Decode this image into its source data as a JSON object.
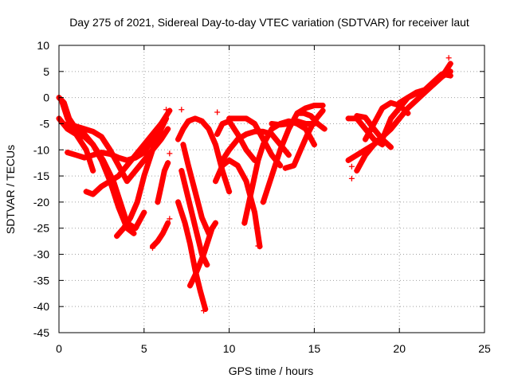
{
  "chart_data": {
    "type": "scatter",
    "title": "Day 275 of 2021, Sidereal Day-to-day VTEC variation (SDTVAR) for receiver laut",
    "xlabel": "GPS time / hours",
    "ylabel": "SDTVAR / TECUs",
    "xlim": [
      0,
      25
    ],
    "ylim": [
      -45,
      10
    ],
    "x_ticks": [
      0,
      5,
      10,
      15,
      20,
      25
    ],
    "y_ticks": [
      10,
      5,
      0,
      -5,
      -10,
      -15,
      -20,
      -25,
      -30,
      -35,
      -40,
      -45
    ],
    "grid": true,
    "marker": "+",
    "color": "#ff0000",
    "series": [
      {
        "name": "arc-1",
        "x": [
          0.0,
          0.3,
          0.6,
          1.0,
          1.5,
          2.0,
          2.6,
          3.2,
          3.6,
          4.0,
          4.5,
          5.0
        ],
        "y": [
          0.0,
          -1.0,
          -4.0,
          -6.0,
          -7.0,
          -9.0,
          -12.0,
          -16.0,
          -20.0,
          -24.0,
          -25.0,
          -22.0
        ]
      },
      {
        "name": "arc-2",
        "x": [
          0.0,
          0.5,
          1.0,
          1.5,
          2.0,
          2.5,
          3.0,
          3.5,
          4.0,
          4.4
        ],
        "y": [
          -4.0,
          -6.0,
          -7.0,
          -7.5,
          -9.0,
          -12.0,
          -16.0,
          -21.0,
          -25.0,
          -26.0
        ]
      },
      {
        "name": "arc-3",
        "x": [
          0.2,
          0.5,
          1.0,
          1.6,
          2.0
        ],
        "y": [
          -1.0,
          -4.0,
          -7.0,
          -10.0,
          -14.0
        ]
      },
      {
        "name": "arc-4",
        "x": [
          0.5,
          1.0,
          1.5,
          2.0,
          2.5,
          3.0,
          3.5,
          4.0,
          4.5,
          5.0,
          5.5,
          6.0,
          6.4
        ],
        "y": [
          -5.0,
          -5.5,
          -6.0,
          -6.5,
          -7.5,
          -10.0,
          -13.0,
          -16.0,
          -14.0,
          -12.0,
          -10.0,
          -8.0,
          -6.0
        ]
      },
      {
        "name": "arc-5",
        "x": [
          0.5,
          1.0,
          1.5,
          2.0,
          2.5,
          3.0,
          3.5,
          4.0,
          4.5,
          5.0,
          5.5,
          6.0,
          6.5
        ],
        "y": [
          -10.5,
          -11.0,
          -11.5,
          -11.0,
          -10.5,
          -10.8,
          -11.5,
          -12.0,
          -11.5,
          -10.5,
          -8.0,
          -5.0,
          -2.5
        ]
      },
      {
        "name": "arc-6",
        "x": [
          1.6,
          2.0,
          2.5,
          3.0,
          3.5,
          4.0,
          4.5,
          5.0,
          5.5,
          6.0
        ],
        "y": [
          -18.0,
          -18.5,
          -17.0,
          -16.0,
          -15.0,
          -13.0,
          -11.0,
          -9.0,
          -7.0,
          -5.0
        ]
      },
      {
        "name": "arc-7",
        "x": [
          3.4,
          3.8,
          4.2,
          4.6,
          5.0,
          5.5,
          6.0,
          6.3
        ],
        "y": [
          -26.5,
          -25.0,
          -23.0,
          -20.0,
          -15.0,
          -10.0,
          -6.0,
          -4.0
        ]
      },
      {
        "name": "arc-8",
        "x": [
          5.5,
          5.8,
          6.1,
          6.4
        ],
        "y": [
          -28.5,
          -27.5,
          -26.0,
          -24.0
        ]
      },
      {
        "name": "arc-9",
        "x": [
          5.8,
          6.0,
          6.2,
          6.4
        ],
        "y": [
          -20.0,
          -17.0,
          -14.0,
          -12.5
        ]
      },
      {
        "name": "arc-10",
        "x": [
          7.0,
          7.4,
          7.7,
          8.0,
          8.3,
          8.6
        ],
        "y": [
          -20.0,
          -24.0,
          -28.0,
          -33.0,
          -37.0,
          -40.5
        ]
      },
      {
        "name": "arc-11",
        "x": [
          7.0,
          7.3,
          7.6,
          8.0,
          8.4,
          8.8,
          9.2,
          9.6,
          10.0
        ],
        "y": [
          -8.0,
          -6.0,
          -4.5,
          -4.0,
          -4.5,
          -6.0,
          -9.0,
          -14.0,
          -18.0
        ]
      },
      {
        "name": "arc-12",
        "x": [
          7.2,
          7.5,
          7.8,
          8.1,
          8.4,
          8.7
        ],
        "y": [
          -14.0,
          -18.0,
          -22.0,
          -26.0,
          -30.0,
          -32.0
        ]
      },
      {
        "name": "arc-13",
        "x": [
          7.3,
          7.6,
          8.0,
          8.4,
          8.8,
          9.0,
          9.2
        ],
        "y": [
          -9.0,
          -13.0,
          -18.0,
          -23.0,
          -26.0,
          -25.0,
          -24.0
        ]
      },
      {
        "name": "arc-14",
        "x": [
          7.7,
          8.0,
          8.5,
          9.0
        ],
        "y": [
          -36.0,
          -34.0,
          -30.0,
          -25.0
        ]
      },
      {
        "name": "arc-15",
        "x": [
          9.2,
          9.6,
          10.0,
          10.5,
          11.0,
          11.5,
          11.8
        ],
        "y": [
          -16.0,
          -13.0,
          -12.0,
          -13.0,
          -16.0,
          -22.0,
          -28.5
        ]
      },
      {
        "name": "arc-16",
        "x": [
          9.3,
          9.6,
          10.0,
          10.5,
          11.0,
          11.5
        ],
        "y": [
          -7.0,
          -5.0,
          -4.5,
          -7.0,
          -10.0,
          -12.0
        ]
      },
      {
        "name": "arc-17",
        "x": [
          9.6,
          10.0,
          10.5,
          11.0,
          11.5,
          12.0,
          12.5,
          13.0,
          13.5
        ],
        "y": [
          -12.0,
          -10.0,
          -8.0,
          -7.0,
          -6.5,
          -6.5,
          -7.0,
          -9.0,
          -11.0
        ]
      },
      {
        "name": "arc-18",
        "x": [
          10.0,
          10.5,
          11.0,
          11.5,
          12.0,
          12.5,
          13.0
        ],
        "y": [
          -4.0,
          -4.0,
          -4.0,
          -5.0,
          -8.0,
          -11.0,
          -13.0
        ]
      },
      {
        "name": "arc-19",
        "x": [
          10.9,
          11.3,
          11.7,
          12.0,
          12.5,
          13.0,
          13.5,
          14.0,
          14.5,
          15.0
        ],
        "y": [
          -24.0,
          -18.0,
          -12.0,
          -9.0,
          -6.0,
          -5.0,
          -4.5,
          -5.0,
          -6.0,
          -9.0
        ]
      },
      {
        "name": "arc-20",
        "x": [
          12.0,
          12.5,
          13.0,
          13.5,
          14.0,
          14.5,
          15.0,
          15.5
        ],
        "y": [
          -20.0,
          -15.0,
          -10.0,
          -6.0,
          -3.0,
          -2.0,
          -1.5,
          -1.5
        ]
      },
      {
        "name": "arc-21",
        "x": [
          12.5,
          13.0,
          13.5,
          14.0,
          14.5,
          15.0
        ],
        "y": [
          -5.0,
          -5.2,
          -5.0,
          -4.5,
          -5.0,
          -5.0
        ]
      },
      {
        "name": "arc-22",
        "x": [
          13.3,
          13.8,
          14.2,
          14.6,
          15.0,
          15.5
        ],
        "y": [
          -13.5,
          -13.0,
          -10.0,
          -7.0,
          -4.5,
          -2.5
        ]
      },
      {
        "name": "arc-23",
        "x": [
          14.0,
          14.4,
          14.8,
          15.2,
          15.6
        ],
        "y": [
          -3.0,
          -3.0,
          -3.5,
          -5.0,
          -6.0
        ]
      },
      {
        "name": "arc-24",
        "x": [
          17.0,
          17.5,
          18.0,
          18.5,
          19.0,
          19.5,
          20.0
        ],
        "y": [
          -12.0,
          -11.0,
          -10.0,
          -9.0,
          -7.5,
          -6.0,
          -4.0
        ]
      },
      {
        "name": "arc-25",
        "x": [
          17.0,
          17.5,
          18.0,
          18.5,
          19.0
        ],
        "y": [
          -4.0,
          -4.0,
          -6.0,
          -8.0,
          -9.0
        ]
      },
      {
        "name": "arc-26",
        "x": [
          17.5,
          18.0,
          18.5,
          19.0,
          19.5
        ],
        "y": [
          -3.5,
          -3.8,
          -6.0,
          -8.0,
          -9.5
        ]
      },
      {
        "name": "arc-27",
        "x": [
          18.0,
          18.5,
          19.0,
          19.5,
          20.0,
          20.5
        ],
        "y": [
          -8.0,
          -5.0,
          -2.0,
          -1.0,
          -1.5,
          -3.0
        ]
      },
      {
        "name": "arc-28",
        "x": [
          17.5,
          18.0,
          18.5,
          19.0,
          19.5,
          20.0,
          20.5,
          21.0,
          21.5,
          22.0,
          22.5,
          23.0
        ],
        "y": [
          -14.0,
          -11.0,
          -9.0,
          -7.5,
          -6.0,
          -4.0,
          -2.0,
          -0.5,
          1.0,
          2.5,
          4.0,
          6.5
        ]
      },
      {
        "name": "arc-29",
        "x": [
          19.0,
          19.5,
          20.0,
          20.5,
          21.0,
          21.5,
          22.0,
          22.5,
          23.0
        ],
        "y": [
          -8.0,
          -4.0,
          -2.0,
          0.0,
          0.8,
          1.2,
          2.5,
          4.0,
          5.0
        ]
      },
      {
        "name": "arc-30",
        "x": [
          20.0,
          20.5,
          21.0,
          21.5,
          22.0,
          22.5,
          23.0
        ],
        "y": [
          -1.0,
          0.0,
          1.0,
          1.5,
          3.0,
          4.5,
          4.2
        ]
      }
    ],
    "isolated_points": [
      {
        "x": 6.3,
        "y": -2.3
      },
      {
        "x": 6.5,
        "y": -10.7
      },
      {
        "x": 6.5,
        "y": -23.2
      },
      {
        "x": 7.2,
        "y": -2.3
      },
      {
        "x": 9.3,
        "y": -2.8
      },
      {
        "x": 17.2,
        "y": -13.2
      },
      {
        "x": 17.2,
        "y": -15.5
      },
      {
        "x": 22.9,
        "y": 7.6
      },
      {
        "x": 8.5,
        "y": -40.8
      },
      {
        "x": 11.7,
        "y": -28.4
      },
      {
        "x": 5.5,
        "y": -28.8
      }
    ]
  }
}
